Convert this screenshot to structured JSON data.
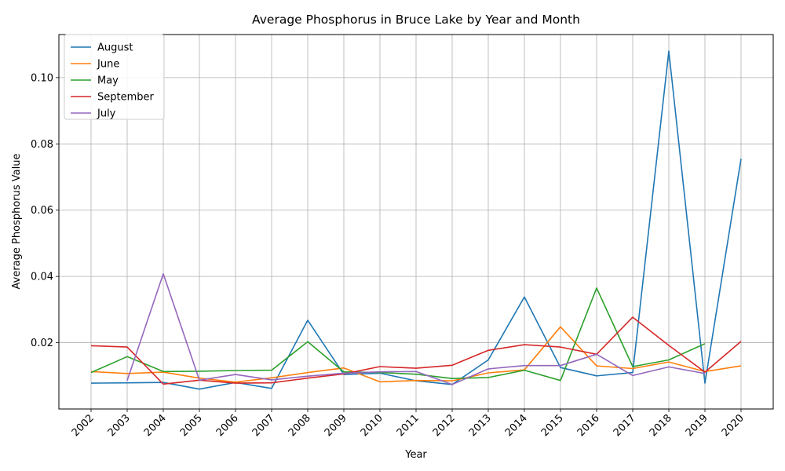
{
  "chart_data": {
    "type": "line",
    "title": "Average Phosphorus in Bruce Lake by Year and Month",
    "xlabel": "Year",
    "ylabel": "Average Phosphorus Value",
    "categories": [
      "2002",
      "2003",
      "2004",
      "2005",
      "2006",
      "2007",
      "2008",
      "2009",
      "2010",
      "2011",
      "2012",
      "2013",
      "2014",
      "2015",
      "2016",
      "2017",
      "2018",
      "2019",
      "2020"
    ],
    "ylim": [
      0.0,
      0.113
    ],
    "yticks": [
      0.02,
      0.04,
      0.06,
      0.08,
      0.1
    ],
    "ytick_labels": [
      "0.02",
      "0.04",
      "0.06",
      "0.08",
      "0.10"
    ],
    "grid": true,
    "legend_position": "upper-left",
    "series": [
      {
        "name": "August",
        "color": "#1f77b4",
        "values": [
          0.0078,
          0.0079,
          0.008,
          0.006,
          0.008,
          0.0062,
          0.0268,
          0.0104,
          0.0108,
          0.0085,
          0.0074,
          0.0148,
          0.0338,
          0.0125,
          0.01,
          0.011,
          0.108,
          0.0078,
          0.0755
        ]
      },
      {
        "name": "June",
        "color": "#ff7f0e",
        "values": [
          0.0113,
          0.0107,
          0.0111,
          0.0093,
          0.0081,
          0.0094,
          0.011,
          0.0124,
          0.0082,
          0.0086,
          0.0085,
          0.0109,
          0.0118,
          0.0248,
          0.013,
          0.0122,
          0.0142,
          0.0113,
          0.013
        ]
      },
      {
        "name": "May",
        "color": "#2ca02c",
        "values": [
          0.011,
          0.0158,
          0.0113,
          0.0114,
          0.0116,
          0.0117,
          0.0203,
          0.0112,
          0.011,
          0.0105,
          0.0092,
          0.0095,
          0.0117,
          0.0086,
          0.0365,
          0.0128,
          0.0148,
          0.0197,
          null
        ]
      },
      {
        "name": "September",
        "color": "#d62728",
        "values": [
          0.0191,
          0.0187,
          0.0075,
          0.0087,
          0.0078,
          0.0079,
          0.0093,
          0.0106,
          0.0128,
          0.0123,
          0.0132,
          0.0177,
          0.0194,
          0.0187,
          0.0165,
          0.0277,
          0.0192,
          0.0111,
          0.0204
        ]
      },
      {
        "name": "July",
        "color": "#9467bd",
        "values": [
          null,
          0.0086,
          0.0408,
          0.0087,
          0.0104,
          0.0088,
          0.0099,
          0.0108,
          0.0112,
          0.0113,
          0.0074,
          0.0121,
          0.0131,
          0.0131,
          0.0165,
          0.0101,
          0.0127,
          0.0107,
          null
        ]
      }
    ]
  }
}
